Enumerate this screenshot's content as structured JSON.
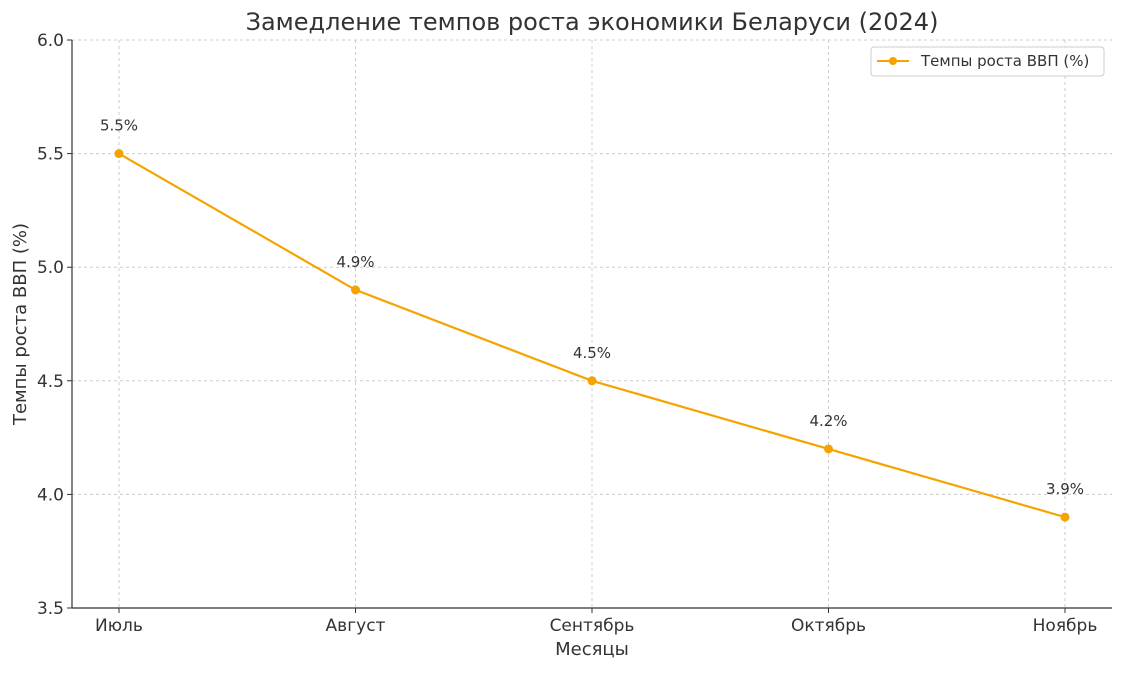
{
  "chart_data": {
    "type": "line",
    "title": "Замедление темпов роста экономики Беларуси (2024)",
    "xlabel": "Месяцы",
    "ylabel": "Темпы роста ВВП (%)",
    "categories": [
      "Июль",
      "Август",
      "Сентябрь",
      "Октябрь",
      "Ноябрь"
    ],
    "series": [
      {
        "name": "Темпы роста ВВП (%)",
        "values": [
          5.5,
          4.9,
          4.5,
          4.2,
          3.9
        ],
        "color": "#f5a300"
      }
    ],
    "data_labels": [
      "5.5%",
      "4.9%",
      "4.5%",
      "4.2%",
      "3.9%"
    ],
    "ylim": [
      3.5,
      6.0
    ],
    "yticks": [
      "3.5",
      "4.0",
      "4.5",
      "5.0",
      "5.5",
      "6.0"
    ],
    "grid": true,
    "legend_position": "top-right"
  }
}
